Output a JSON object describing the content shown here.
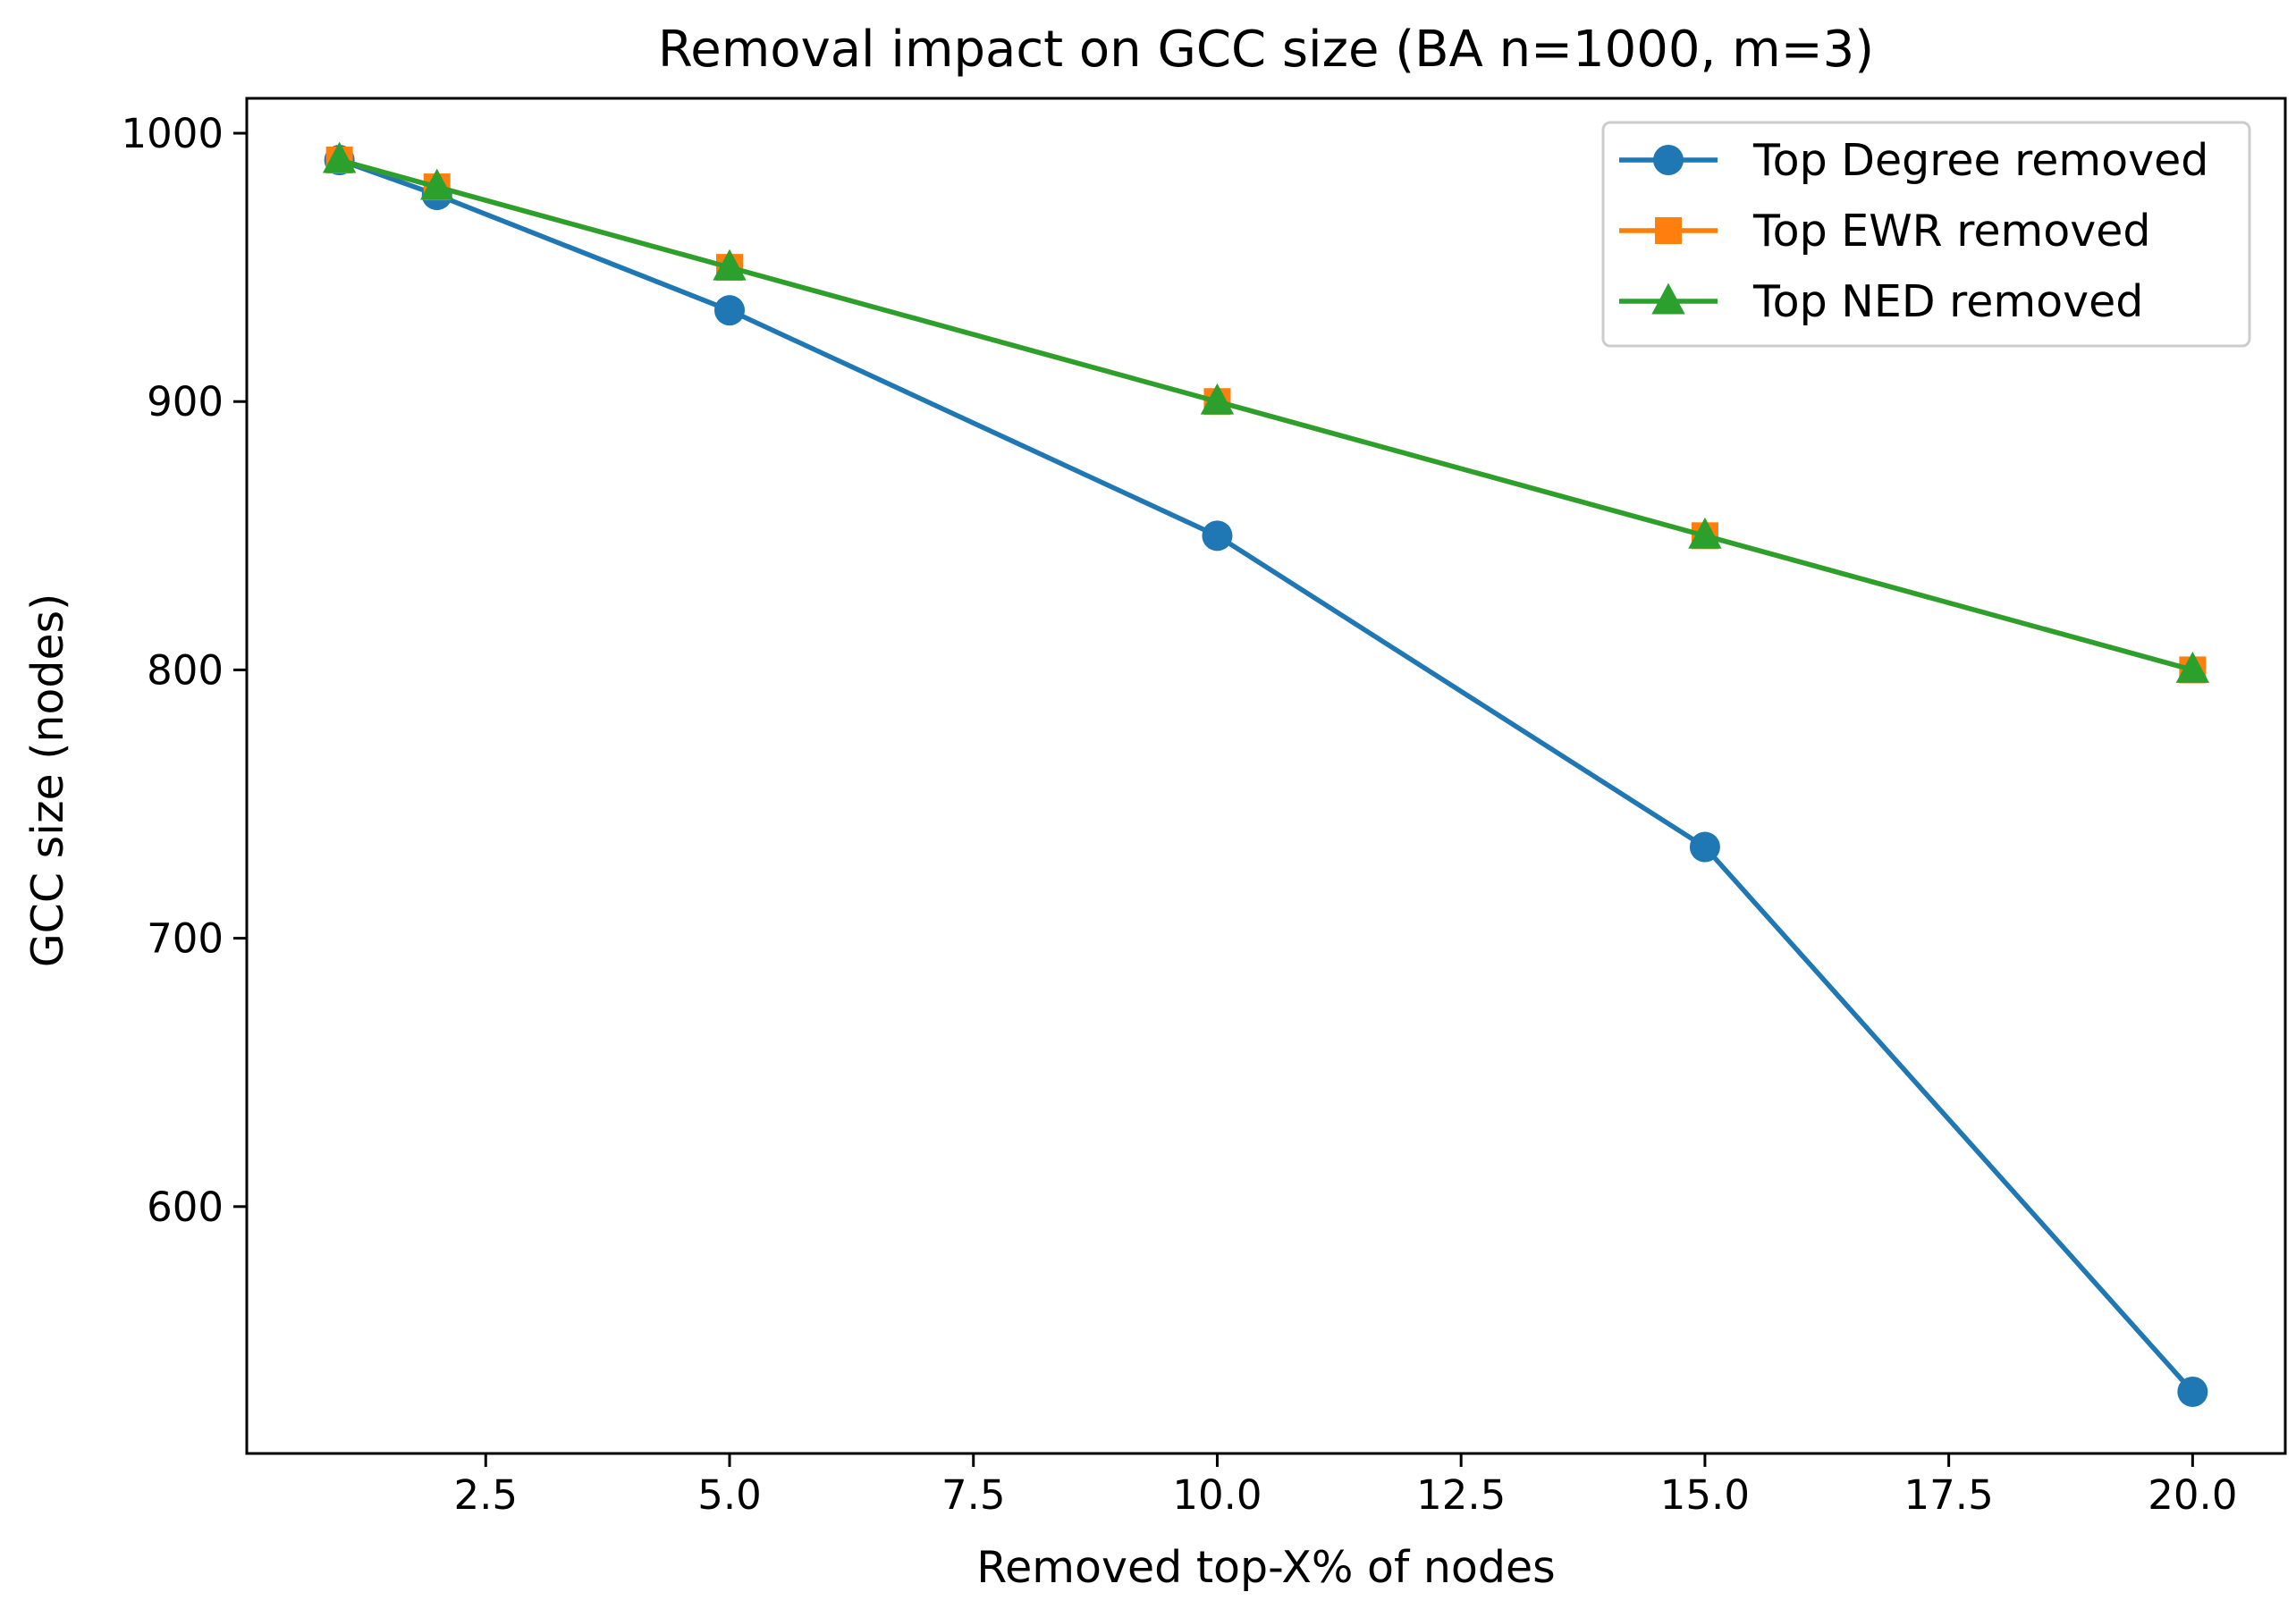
{
  "chart_data": {
    "type": "line",
    "title": "Removal impact on GCC size (BA n=1000, m=3)",
    "xlabel": "Removed top-X% of nodes",
    "ylabel": "GCC size (nodes)",
    "xlim": [
      0.05,
      20.95
    ],
    "ylim": [
      508,
      1013
    ],
    "xticks": [
      2.5,
      5.0,
      7.5,
      10.0,
      12.5,
      15.0,
      17.5,
      20.0
    ],
    "xtick_labels": [
      "2.5",
      "5.0",
      "7.5",
      "10.0",
      "12.5",
      "15.0",
      "17.5",
      "20.0"
    ],
    "yticks": [
      600,
      700,
      800,
      900,
      1000
    ],
    "ytick_labels": [
      "600",
      "700",
      "800",
      "900",
      "1000"
    ],
    "x": [
      1,
      2,
      5,
      10,
      15,
      20
    ],
    "legend_position": "top-right",
    "series": [
      {
        "name": "Top Degree removed",
        "color": "#1f77b4",
        "marker": "circle",
        "values": [
          990,
          977,
          934,
          850,
          734,
          531
        ]
      },
      {
        "name": "Top EWR removed",
        "color": "#ff7f0e",
        "marker": "square",
        "values": [
          990,
          980,
          950,
          900,
          850,
          800
        ]
      },
      {
        "name": "Top NED removed",
        "color": "#2ca02c",
        "marker": "triangle",
        "values": [
          990,
          980,
          950,
          900,
          850,
          800
        ]
      }
    ]
  }
}
